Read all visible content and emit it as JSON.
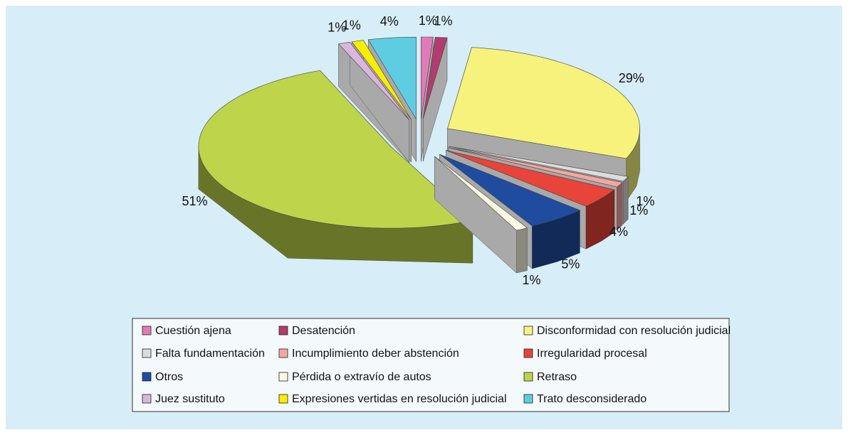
{
  "chart_data": {
    "type": "pie3d",
    "categories": [
      "Cuestión ajena",
      "Desatención",
      "Disconformidad con resolución judicial",
      "Falta fundamentación",
      "Incumplimiento deber abstención",
      "Irregularidad procesal",
      "Otros",
      "Pérdida o extravío de autos",
      "Retraso",
      "Juez sustituto",
      "Expresiones vertidas en resolución judicial",
      "Trato desconsiderado"
    ],
    "values": [
      1,
      1,
      29,
      1,
      1,
      4,
      5,
      1,
      51,
      1,
      1,
      4
    ],
    "value_labels": [
      "1%",
      "1%",
      "29%",
      "1%",
      "1%",
      "4%",
      "5%",
      "1%",
      "51%",
      "1%",
      "1%",
      "4%"
    ],
    "colors": [
      "#e07bb8",
      "#b23c70",
      "#f6f27c",
      "#dcdcdc",
      "#f3a7a0",
      "#e8443a",
      "#1f4c9f",
      "#fdf8e2",
      "#bdd44b",
      "#dab6dc",
      "#f7ee00",
      "#5ecde2"
    ],
    "legend": "bottom"
  }
}
